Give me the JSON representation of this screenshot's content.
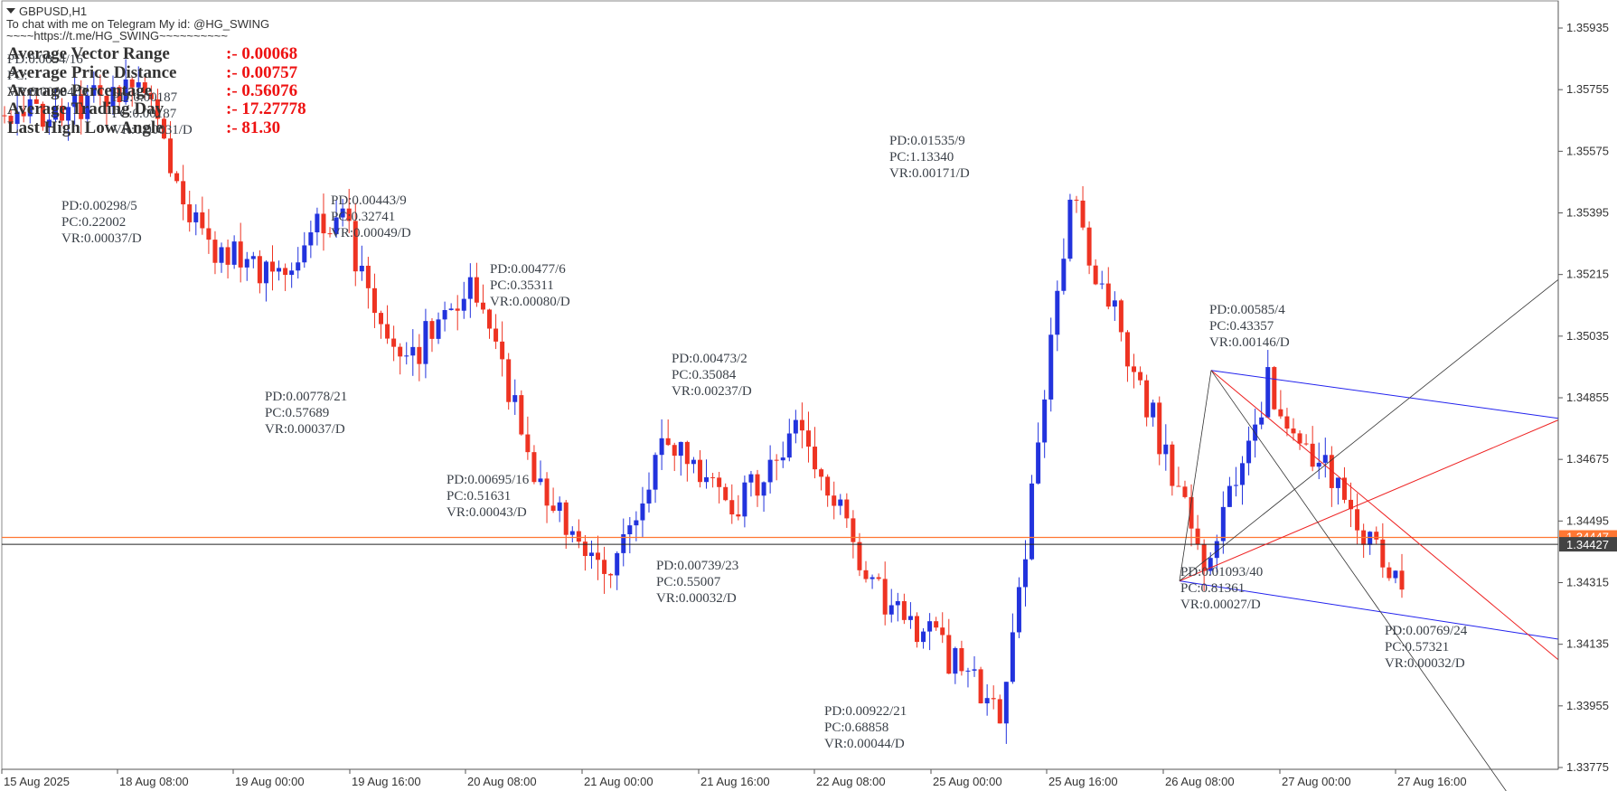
{
  "header": {
    "symbol": "GBPUSD,H1",
    "telegram": "To chat with me on Telegram My id: @HG_SWING",
    "link": "~~~~https://t.me/HG_SWING~~~~~~~~~~"
  },
  "stats": [
    {
      "label": "Average Vector Range",
      "value": ":-  0.00068"
    },
    {
      "label": "Average Price Distance",
      "value": ":-  0.00757"
    },
    {
      "label": "Average Percentage",
      "value": ":-  0.56076"
    },
    {
      "label": "Average Trading Day",
      "value": ":-  17.27778"
    },
    {
      "label": "Last High Low Angle",
      "value": ":-     81.30"
    }
  ],
  "colors": {
    "bull": "#2233dd",
    "bear": "#ee3322",
    "wick": "#555555",
    "bid_line": "#ff7733",
    "last_line": "#222222",
    "blue_channel": "#2222ee",
    "red_channel": "#ee2222",
    "fan": "#333333"
  },
  "chart_data": {
    "type": "candlestick",
    "symbol": "GBPUSD",
    "timeframe": "H1",
    "ylim": [
      1.3366,
      1.3603
    ],
    "y_ticks": [
      "1.35935",
      "1.35755",
      "1.35575",
      "1.35395",
      "1.35215",
      "1.35035",
      "1.34855",
      "1.34675",
      "1.34495",
      "1.34315",
      "1.34135",
      "1.33955",
      "1.33775"
    ],
    "x_ticks": [
      "15 Aug 2025",
      "18 Aug 08:00",
      "19 Aug 00:00",
      "19 Aug 16:00",
      "20 Aug 08:00",
      "21 Aug 00:00",
      "21 Aug 16:00",
      "22 Aug 08:00",
      "25 Aug 00:00",
      "25 Aug 16:00",
      "26 Aug 08:00",
      "27 Aug 00:00",
      "27 Aug 16:00"
    ],
    "bid_price": 1.34447,
    "last_price": 1.34427,
    "last_price_label": "1.34427",
    "bid_price_label": "1.34447",
    "swing_points": [
      1.3568,
      1.3571,
      1.3578,
      1.3532,
      1.352,
      1.354,
      1.3494,
      1.3521,
      1.3463,
      1.3432,
      1.3474,
      1.3454,
      1.3478,
      1.343,
      1.3414,
      1.3392,
      1.3543,
      1.3494,
      1.3436,
      1.349,
      1.3459,
      1.3428
    ],
    "annotations": [
      {
        "pd": "PD:0.0054/16",
        "pc": "PC:",
        "vr": "VR:0.00094/D"
      },
      {
        "pd": "PD:0.00187",
        "pc": "PC:0.00187",
        "vr": "VR:0.00031/D"
      },
      {
        "pd": "PD:0.00298/5",
        "pc": "PC:0.22002",
        "vr": "VR:0.00037/D"
      },
      {
        "pd": "PD:0.00443/9",
        "pc": "PC:0.32741",
        "vr": "VR:0.00049/D"
      },
      {
        "pd": "PD:0.00778/21",
        "pc": "PC:0.57689",
        "vr": "VR:0.00037/D"
      },
      {
        "pd": "PD:0.00477/6",
        "pc": "PC:0.35311",
        "vr": "VR:0.00080/D"
      },
      {
        "pd": "PD:0.00695/16",
        "pc": "PC:0.51631",
        "vr": "VR:0.00043/D"
      },
      {
        "pd": "PD:0.00473/2",
        "pc": "PC:0.35084",
        "vr": "VR:0.00237/D"
      },
      {
        "pd": "PD:0.00739/23",
        "pc": "PC:0.55007",
        "vr": "VR:0.00032/D"
      },
      {
        "pd": "PD:0.00922/21",
        "pc": "PC:0.68858",
        "vr": "VR:0.00044/D"
      },
      {
        "pd": "PD:0.01535/9",
        "pc": "PC:1.13340",
        "vr": "VR:0.00171/D"
      },
      {
        "pd": "PD:0.00585/4",
        "pc": "PC:0.43357",
        "vr": "VR:0.00146/D"
      },
      {
        "pd": "PD:0.01093/40",
        "pc": "PC:0.81361",
        "vr": "VR:0.00027/D"
      },
      {
        "pd": "PD:0.00769/24",
        "pc": "PC:0.57321",
        "vr": "VR:0.00032/D"
      }
    ]
  }
}
